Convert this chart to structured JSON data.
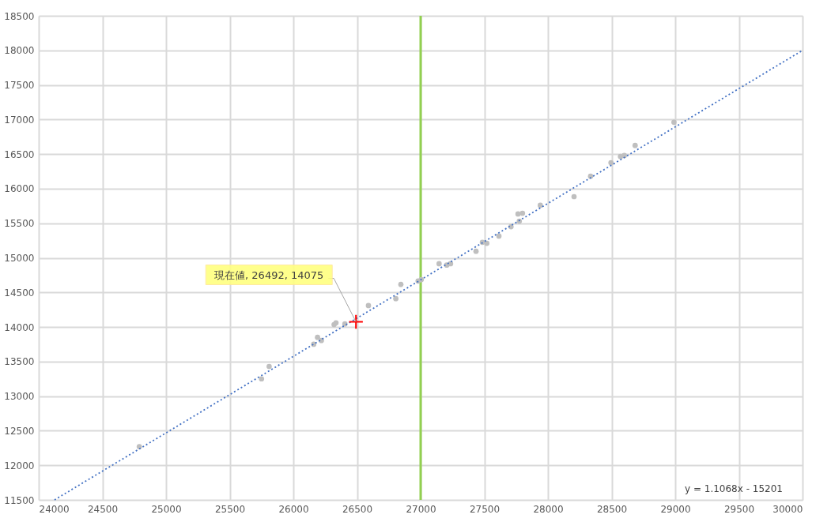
{
  "chart_data": {
    "type": "scatter",
    "xlim": [
      24000,
      30000
    ],
    "xticks": [
      24000,
      24500,
      25000,
      25500,
      26000,
      26500,
      27000,
      27500,
      28000,
      28500,
      29000,
      29500,
      30000
    ],
    "ylim": [
      11500,
      18500
    ],
    "yticks": [
      11500,
      12000,
      12500,
      13000,
      13500,
      14000,
      14500,
      15000,
      15500,
      16000,
      16500,
      17000,
      17500,
      18000,
      18500
    ],
    "grid": true,
    "series": [
      {
        "color": "#bfbfbf",
        "marker": "circle",
        "x": [
          24790,
          25750,
          25810,
          26160,
          26190,
          26220,
          26320,
          26335,
          26405,
          26590,
          26805,
          26845,
          26980,
          27005,
          27145,
          27205,
          27235,
          27435,
          27485,
          27520,
          27615,
          27710,
          27765,
          27800,
          27775,
          27940,
          28205,
          28335,
          28495,
          28570,
          28600,
          28685,
          28990
        ],
        "values": [
          12270,
          13250,
          13430,
          13750,
          13850,
          13805,
          14035,
          14060,
          14045,
          14310,
          14410,
          14615,
          14665,
          14685,
          14915,
          14895,
          14915,
          15095,
          15225,
          15210,
          15315,
          15450,
          15635,
          15645,
          15530,
          15760,
          15885,
          16180,
          16375,
          16465,
          16480,
          16625,
          16960
        ]
      },
      {
        "type": "line",
        "color": "#4472c4",
        "line_style": "dotted",
        "x": [
          24124,
          30000
        ],
        "values": [
          11500,
          18000
        ]
      },
      {
        "color": "#ff0000",
        "marker": "cross",
        "x": [
          26492
        ],
        "values": [
          14075
        ]
      }
    ],
    "ref_lines": [
      {
        "axis": "x",
        "value": 27000,
        "color": "#92d050",
        "line_style": "solid"
      }
    ],
    "annotations": [
      {
        "text": "現在値, 26492, 14075",
        "x": 26492,
        "y": 14075
      },
      "y = 1.1068x - 15201"
    ]
  }
}
